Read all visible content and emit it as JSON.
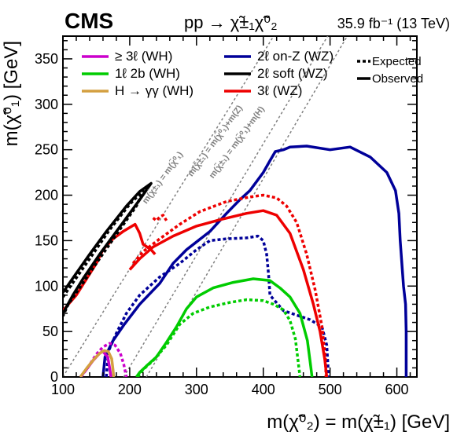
{
  "header": {
    "experiment": "CMS",
    "process": "pp → χ̃±₁χ̃⁰₂",
    "luminosity": "35.9 fb⁻¹ (13 TeV)"
  },
  "chart_data": {
    "type": "line",
    "xlabel": "m(χ̃⁰₂) = m(χ̃±₁) [GeV]",
    "ylabel": "m(χ̃⁰₁) [GeV]",
    "xlim": [
      100,
      630
    ],
    "ylim": [
      0,
      375
    ],
    "x_ticks": [
      "100",
      "200",
      "300",
      "400",
      "500",
      "600"
    ],
    "y_ticks": [
      "0",
      "50",
      "100",
      "150",
      "200",
      "250",
      "300",
      "350"
    ],
    "legend": [
      {
        "label": "≥ 3ℓ (WH)",
        "color": "#cc00cc"
      },
      {
        "label": "1ℓ 2b (WH)",
        "color": "#00cc00"
      },
      {
        "label": "H → γγ (WH)",
        "color": "#d4a040"
      },
      {
        "label": "2ℓ on-Z (WZ)",
        "color": "#000099"
      },
      {
        "label": "2ℓ soft (WZ)",
        "color": "#000000"
      },
      {
        "label": "3ℓ (WZ)",
        "color": "#ee0000"
      }
    ],
    "line_style_legend": [
      {
        "label": "Expected",
        "style": "dashed"
      },
      {
        "label": "Observed",
        "style": "solid"
      }
    ],
    "diagonals": [
      {
        "label": "m(χ̃±₁) = m(χ̃⁰₁)",
        "offset": 0
      },
      {
        "label": "m(χ̃±₁) = m(χ̃⁰₁)+m(Z)",
        "offset": 91
      },
      {
        "label": "m(χ̃±₁) = m(χ̃⁰₁)+m(H)",
        "offset": 125
      }
    ],
    "series": [
      {
        "name": "2ℓ on-Z (WZ)",
        "style": "observed",
        "color": "#000099",
        "points": [
          [
            160,
            0
          ],
          [
            163,
            22
          ],
          [
            175,
            40
          ],
          [
            192,
            58
          ],
          [
            215,
            80
          ],
          [
            245,
            103
          ],
          [
            265,
            125
          ],
          [
            285,
            140
          ],
          [
            320,
            160
          ],
          [
            345,
            180
          ],
          [
            365,
            195
          ],
          [
            380,
            205
          ],
          [
            390,
            215
          ],
          [
            400,
            225
          ],
          [
            410,
            238
          ],
          [
            418,
            248
          ],
          [
            430,
            250
          ],
          [
            440,
            253
          ],
          [
            465,
            254
          ],
          [
            500,
            250
          ],
          [
            530,
            253
          ],
          [
            560,
            242
          ],
          [
            585,
            225
          ],
          [
            598,
            205
          ],
          [
            603,
            180
          ],
          [
            605,
            150
          ],
          [
            608,
            120
          ],
          [
            610,
            100
          ],
          [
            613,
            80
          ],
          [
            614,
            50
          ],
          [
            614,
            20
          ],
          [
            614,
            0
          ]
        ]
      },
      {
        "name": "2ℓ on-Z (WZ)",
        "style": "expected",
        "color": "#000099",
        "points": [
          [
            165,
            0
          ],
          [
            168,
            28
          ],
          [
            180,
            48
          ],
          [
            195,
            70
          ],
          [
            215,
            90
          ],
          [
            245,
            110
          ],
          [
            275,
            125
          ],
          [
            300,
            140
          ],
          [
            320,
            150
          ],
          [
            345,
            152
          ],
          [
            375,
            153
          ],
          [
            392,
            155
          ],
          [
            400,
            150
          ],
          [
            405,
            135
          ],
          [
            408,
            112
          ],
          [
            410,
            90
          ],
          [
            430,
            73
          ],
          [
            470,
            63
          ],
          [
            488,
            55
          ],
          [
            495,
            35
          ],
          [
            497,
            10
          ],
          [
            497,
            0
          ]
        ]
      },
      {
        "name": "3ℓ (WZ)",
        "style": "observed",
        "color": "#ee0000",
        "points": [
          [
            200,
            118
          ],
          [
            215,
            130
          ],
          [
            235,
            143
          ],
          [
            265,
            155
          ],
          [
            300,
            166
          ],
          [
            335,
            173
          ],
          [
            375,
            180
          ],
          [
            400,
            183
          ],
          [
            420,
            178
          ],
          [
            440,
            158
          ],
          [
            460,
            118
          ],
          [
            475,
            80
          ],
          [
            485,
            50
          ],
          [
            492,
            20
          ],
          [
            495,
            0
          ]
        ]
      },
      {
        "name": "3ℓ (WZ)",
        "style": "observed",
        "color": "#ee0000",
        "points": [
          [
            100,
            73
          ],
          [
            120,
            90
          ],
          [
            150,
            125
          ],
          [
            160,
            140
          ],
          [
            175,
            152
          ],
          [
            190,
            160
          ],
          [
            208,
            168
          ],
          [
            215,
            158
          ],
          [
            220,
            146
          ],
          [
            232,
            140
          ],
          [
            238,
            135
          ]
        ]
      },
      {
        "name": "3ℓ (WZ)",
        "style": "expected",
        "color": "#ee0000",
        "points": [
          [
            205,
            125
          ],
          [
            220,
            138
          ],
          [
            245,
            152
          ],
          [
            275,
            168
          ],
          [
            305,
            182
          ],
          [
            345,
            193
          ],
          [
            380,
            198
          ],
          [
            400,
            200
          ],
          [
            420,
            197
          ],
          [
            435,
            188
          ],
          [
            450,
            170
          ],
          [
            465,
            135
          ],
          [
            478,
            95
          ],
          [
            488,
            55
          ],
          [
            493,
            20
          ],
          [
            494,
            0
          ]
        ]
      },
      {
        "name": "3ℓ (WZ)",
        "style": "expected",
        "color": "#ee0000",
        "points": [
          [
            235,
            175
          ],
          [
            240,
            172
          ],
          [
            245,
            176
          ],
          [
            250,
            178
          ],
          [
            255,
            172
          ]
        ]
      },
      {
        "name": "1ℓ 2b (WH)",
        "style": "observed",
        "color": "#00cc00",
        "points": [
          [
            210,
            0
          ],
          [
            215,
            5
          ],
          [
            225,
            12
          ],
          [
            240,
            22
          ],
          [
            255,
            38
          ],
          [
            270,
            55
          ],
          [
            285,
            75
          ],
          [
            300,
            88
          ],
          [
            325,
            98
          ],
          [
            355,
            104
          ],
          [
            385,
            108
          ],
          [
            410,
            106
          ],
          [
            425,
            98
          ],
          [
            440,
            88
          ],
          [
            455,
            70
          ],
          [
            466,
            40
          ],
          [
            471,
            12
          ],
          [
            473,
            0
          ]
        ]
      },
      {
        "name": "1ℓ 2b (WH)",
        "style": "expected",
        "color": "#00cc00",
        "points": [
          [
            212,
            0
          ],
          [
            220,
            8
          ],
          [
            235,
            18
          ],
          [
            255,
            35
          ],
          [
            275,
            58
          ],
          [
            295,
            70
          ],
          [
            320,
            77
          ],
          [
            350,
            82
          ],
          [
            375,
            85
          ],
          [
            400,
            84
          ],
          [
            415,
            80
          ],
          [
            430,
            74
          ],
          [
            440,
            62
          ],
          [
            448,
            42
          ],
          [
            452,
            18
          ],
          [
            455,
            0
          ]
        ]
      },
      {
        "name": "2ℓ soft (WZ)",
        "style": "observed",
        "color": "#000000",
        "points": [
          [
            100,
            93
          ],
          [
            118,
            112
          ],
          [
            140,
            135
          ],
          [
            165,
            160
          ],
          [
            195,
            188
          ],
          [
            215,
            204
          ],
          [
            232,
            213
          ],
          [
            215,
            195
          ],
          [
            190,
            170
          ],
          [
            155,
            135
          ],
          [
            130,
            108
          ],
          [
            115,
            90
          ],
          [
            100,
            70
          ]
        ]
      },
      {
        "name": "2ℓ soft (WZ)",
        "style": "expected",
        "color": "#000000",
        "points": [
          [
            100,
            88
          ],
          [
            118,
            107
          ],
          [
            140,
            130
          ],
          [
            170,
            162
          ],
          [
            200,
            190
          ],
          [
            220,
            205
          ],
          [
            210,
            188
          ],
          [
            185,
            162
          ],
          [
            150,
            125
          ],
          [
            125,
            98
          ],
          [
            108,
            80
          ],
          [
            100,
            67
          ]
        ]
      },
      {
        "name": "≥ 3ℓ (WH)",
        "style": "observed",
        "color": "#cc00cc",
        "points": [
          [
            126,
            0
          ],
          [
            135,
            8
          ],
          [
            145,
            18
          ],
          [
            155,
            26
          ],
          [
            160,
            28
          ],
          [
            167,
            22
          ],
          [
            170,
            10
          ],
          [
            172,
            0
          ]
        ]
      },
      {
        "name": "≥ 3ℓ (WH)",
        "style": "expected",
        "color": "#cc00cc",
        "points": [
          [
            127,
            0
          ],
          [
            137,
            10
          ],
          [
            150,
            25
          ],
          [
            160,
            33
          ],
          [
            170,
            37
          ],
          [
            178,
            35
          ],
          [
            186,
            26
          ],
          [
            191,
            14
          ],
          [
            195,
            0
          ]
        ]
      },
      {
        "name": "H → γγ (WH)",
        "style": "observed",
        "color": "#d4a040",
        "points": [
          [
            126,
            0
          ],
          [
            136,
            10
          ],
          [
            147,
            20
          ],
          [
            155,
            26
          ],
          [
            162,
            29
          ],
          [
            168,
            28
          ],
          [
            173,
            20
          ],
          [
            175,
            8
          ],
          [
            176,
            0
          ]
        ]
      }
    ]
  }
}
